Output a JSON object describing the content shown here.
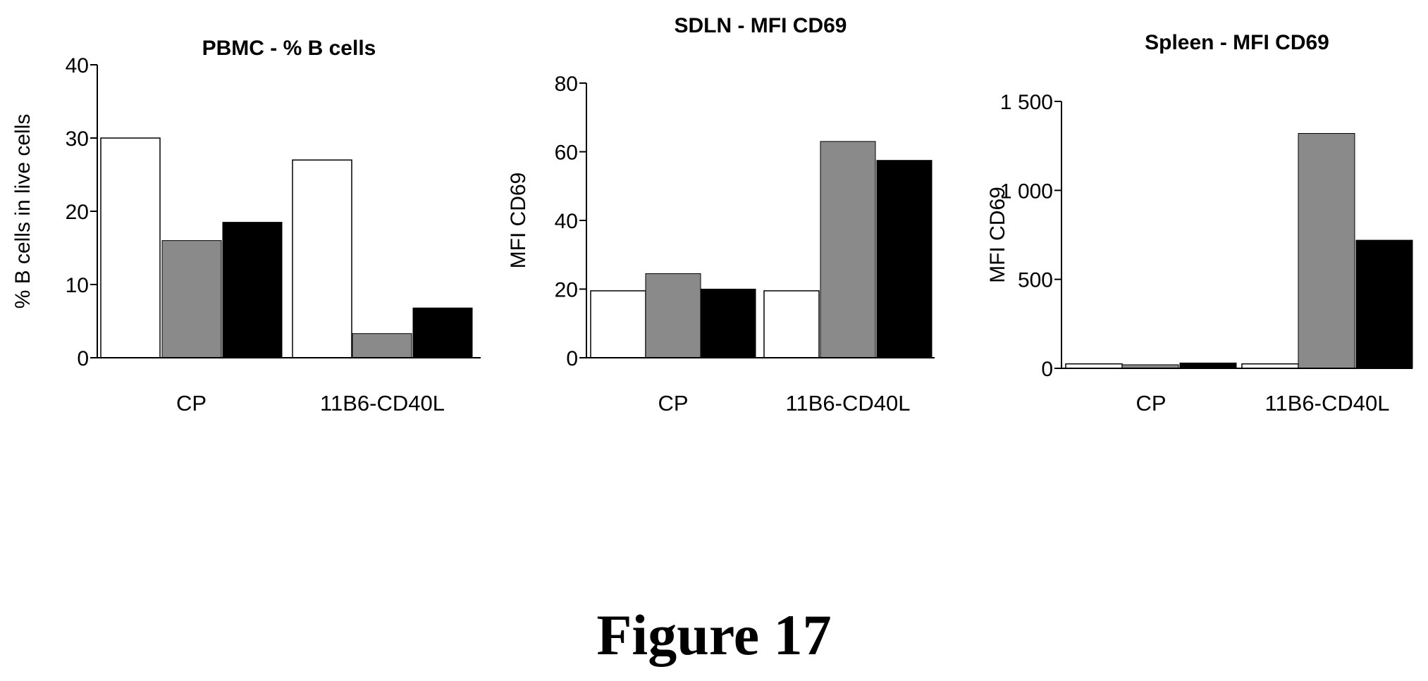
{
  "figure_caption": "Figure 17",
  "colors": {
    "series1_fill": "#ffffff",
    "series2_fill": "#8a8a8a",
    "series3_fill": "#000000",
    "outline": "#000000"
  },
  "chart_data": [
    {
      "type": "bar",
      "title": "PBMC - % B cells",
      "ylabel": "% B cells in live cells",
      "xlabel": "",
      "categories": [
        "CP",
        "11B6-CD40L"
      ],
      "ylim": [
        0,
        40
      ],
      "yticks": [
        0,
        10,
        20,
        30,
        40
      ],
      "ytick_labels": [
        "0",
        "10",
        "20",
        "30",
        "40"
      ],
      "series": [
        {
          "values": [
            30,
            27
          ]
        },
        {
          "values": [
            16,
            3.3
          ]
        },
        {
          "values": [
            18.5,
            6.8
          ]
        }
      ],
      "grid": false,
      "legend": "none"
    },
    {
      "type": "bar",
      "title": "SDLN - MFI CD69",
      "ylabel": "MFI CD69",
      "xlabel": "",
      "categories": [
        "CP",
        "11B6-CD40L"
      ],
      "ylim": [
        0,
        80
      ],
      "yticks": [
        0,
        20,
        40,
        60,
        80
      ],
      "ytick_labels": [
        "0",
        "20",
        "40",
        "60",
        "80"
      ],
      "series": [
        {
          "values": [
            19.5,
            19.5
          ]
        },
        {
          "values": [
            24.5,
            63
          ]
        },
        {
          "values": [
            20,
            57.5
          ]
        }
      ],
      "grid": false,
      "legend": "none"
    },
    {
      "type": "bar",
      "title": "Spleen - MFI CD69",
      "ylabel": "MFI CD69",
      "xlabel": "",
      "categories": [
        "CP",
        "11B6-CD40L"
      ],
      "ylim": [
        0,
        1500
      ],
      "yticks": [
        0,
        500,
        1000,
        1500
      ],
      "ytick_labels": [
        "0",
        "500",
        "1 000",
        "1 500"
      ],
      "series": [
        {
          "values": [
            25,
            25
          ]
        },
        {
          "values": [
            20,
            1320
          ]
        },
        {
          "values": [
            30,
            720
          ]
        }
      ],
      "grid": false,
      "legend": "none"
    }
  ]
}
